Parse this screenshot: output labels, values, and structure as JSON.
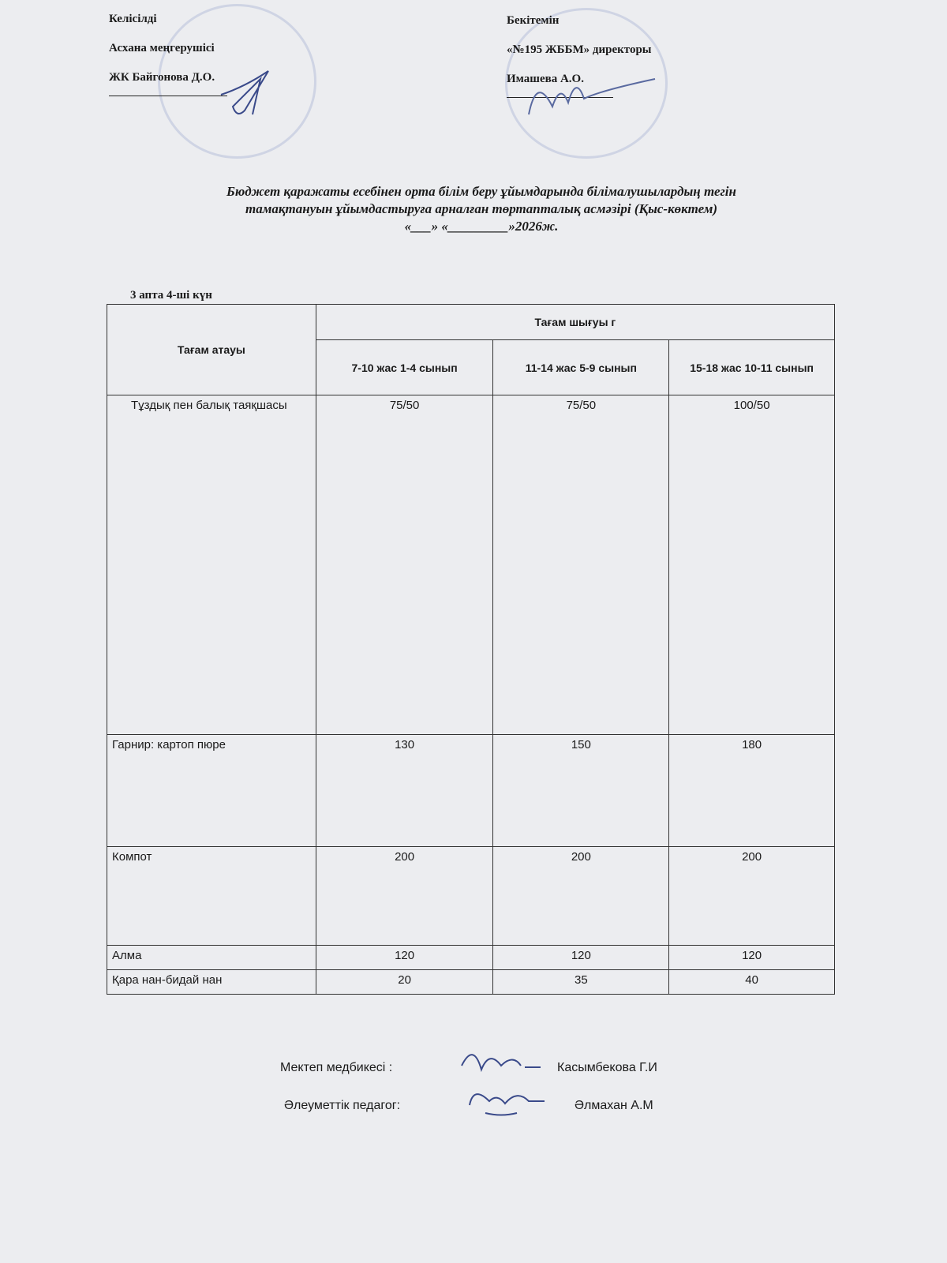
{
  "approval_left": {
    "heading": "Келісілді",
    "position": "Асхана меңгерушісі",
    "name": "ЖК Байгонова Д.О."
  },
  "approval_right": {
    "heading": "Бекітемін",
    "position": "«№195 ЖББМ» директоры",
    "name": "Имашева А.О."
  },
  "title": {
    "line1": "Бюджет қаражаты есебінен орта білім беру ұйымдарында білімалушылардың тегін",
    "line2": "тамақтануын ұйымдастыруға арналған төртапталық асмәзірі (Қыс-көктем)",
    "line3": "«___» «_________»2026ж."
  },
  "day_label": "3 апта 4-ші күн",
  "table": {
    "col_name": "Тағам атауы",
    "col_group": "Тағам шығуы г",
    "cols": [
      "7-10   жас   1-4 сынып",
      "11-14  жас  5-9 сынып",
      "15-18 жас    10-11 сынып"
    ],
    "rows": [
      {
        "name": "Тұздық пен балық таяқшасы",
        "values": [
          "75/50",
          "75/50",
          "100/50"
        ]
      },
      {
        "name": "Гарнир: картоп пюре",
        "values": [
          "130",
          "150",
          "180"
        ]
      },
      {
        "name": "Компот",
        "values": [
          "200",
          "200",
          "200"
        ]
      },
      {
        "name": "Алма",
        "values": [
          "120",
          "120",
          "120"
        ]
      },
      {
        "name": "Қара нан-бидай нан",
        "values": [
          "20",
          "35",
          "40"
        ]
      }
    ]
  },
  "signatures": [
    {
      "role": "Мектеп  медбикесі :",
      "name": "Касымбекова Г.И"
    },
    {
      "role": "Әлеуметтік педагог:",
      "name": "Әлмахан А.М"
    }
  ]
}
